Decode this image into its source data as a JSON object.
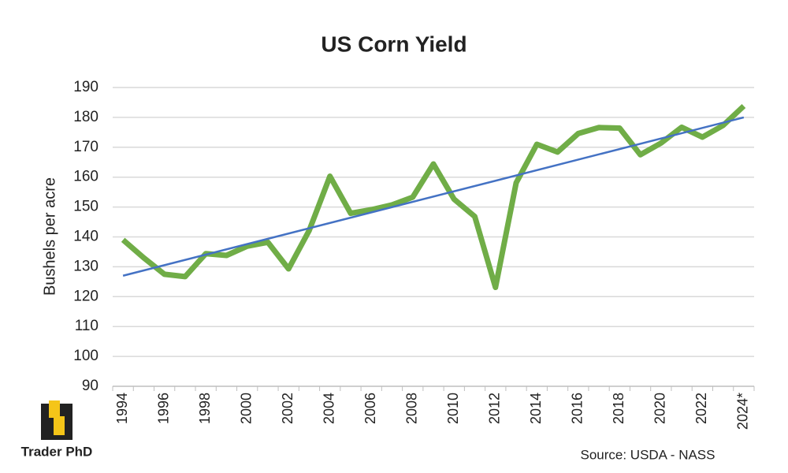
{
  "chart_data": {
    "type": "line",
    "title": "US Corn Yield",
    "y_label": "Bushels per acre",
    "source": "Source: USDA - NASS",
    "brand": "Trader PhD",
    "categories": [
      "1994",
      null,
      "1996",
      null,
      "1998",
      null,
      "2000",
      null,
      "2002",
      null,
      "2004",
      null,
      "2006",
      null,
      "2008",
      null,
      "2010",
      null,
      "2012",
      null,
      "2014",
      null,
      "2016",
      null,
      "2018",
      null,
      "2020",
      null,
      "2022",
      null,
      "2024*"
    ],
    "series": [
      {
        "color": "#70ad47",
        "values": [
          139,
          133,
          127.5,
          126.7,
          134.4,
          133.8,
          136.9,
          138.2,
          129.3,
          142.2,
          160.3,
          147.9,
          149.1,
          150.7,
          153.3,
          164.4,
          152.6,
          146.8,
          123.1,
          158.1,
          171,
          168.4,
          174.6,
          176.6,
          176.4,
          167.5,
          171.4,
          176.7,
          173.4,
          177.3,
          183.8
        ]
      }
    ],
    "trend": {
      "color": "#4472c4",
      "start": 127,
      "end": 180
    },
    "ylim": [
      90,
      190
    ],
    "yticks": [
      90,
      100,
      110,
      120,
      130,
      140,
      150,
      160,
      170,
      180,
      190
    ],
    "grid": true
  }
}
